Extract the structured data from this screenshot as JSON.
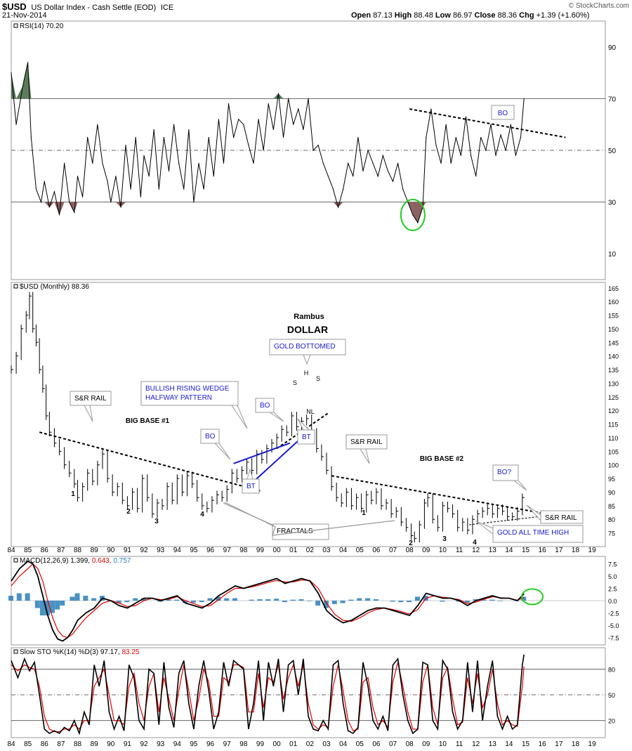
{
  "header": {
    "symbol": "$USD",
    "description": "US Dollar Index - Cash Settle (EOD)",
    "exchange": "ICE",
    "date": "21-Nov-2014",
    "open_label": "Open",
    "open": "87.13",
    "high_label": "High",
    "high": "88.48",
    "low_label": "Low",
    "low": "86.97",
    "close_label": "Close",
    "close": "88.36",
    "chg_label": "Chg",
    "chg": "+1.39 (+1.60%)",
    "watermark": "© StockCharts.com"
  },
  "chart_data": [
    {
      "type": "line",
      "panel": "rsi",
      "legend": "RSI(14) 70.20",
      "ylim": [
        0,
        100
      ],
      "yticks": [
        10,
        30,
        50,
        70,
        90
      ],
      "reference_lines": [
        30,
        50,
        70
      ],
      "x": [
        1984.0,
        1984.3,
        1984.7,
        1985.0,
        1985.2,
        1985.5,
        1985.8,
        1986.0,
        1986.3,
        1986.6,
        1986.9,
        1987.2,
        1987.5,
        1987.8,
        1988.0,
        1988.3,
        1988.6,
        1988.9,
        1989.2,
        1989.5,
        1989.8,
        1990.0,
        1990.3,
        1990.6,
        1990.9,
        1991.2,
        1991.5,
        1991.8,
        1992.0,
        1992.3,
        1992.6,
        1992.9,
        1993.2,
        1993.5,
        1993.8,
        1994.1,
        1994.4,
        1994.7,
        1995.0,
        1995.3,
        1995.6,
        1995.9,
        1996.2,
        1996.5,
        1996.8,
        1997.1,
        1997.4,
        1997.7,
        1998.0,
        1998.3,
        1998.6,
        1998.9,
        1999.2,
        1999.5,
        1999.8,
        2000.1,
        2000.4,
        2000.7,
        2001.0,
        2001.3,
        2001.6,
        2001.9,
        2002.2,
        2002.5,
        2002.8,
        2003.1,
        2003.4,
        2003.7,
        2004.0,
        2004.3,
        2004.6,
        2004.9,
        2005.2,
        2005.5,
        2005.8,
        2006.1,
        2006.4,
        2006.7,
        2007.0,
        2007.3,
        2007.6,
        2007.9,
        2008.2,
        2008.5,
        2008.8,
        2009.0,
        2009.3,
        2009.6,
        2009.9,
        2010.2,
        2010.5,
        2010.8,
        2011.1,
        2011.4,
        2011.7,
        2012.0,
        2012.3,
        2012.6,
        2012.9,
        2013.2,
        2013.5,
        2013.8,
        2014.1,
        2014.4,
        2014.7,
        2014.9
      ],
      "values": [
        80,
        60,
        75,
        84,
        55,
        35,
        30,
        38,
        28,
        34,
        25,
        45,
        30,
        26,
        40,
        32,
        55,
        45,
        60,
        45,
        38,
        30,
        40,
        28,
        52,
        35,
        55,
        32,
        48,
        40,
        58,
        35,
        55,
        42,
        60,
        45,
        35,
        58,
        30,
        45,
        35,
        55,
        40,
        62,
        45,
        68,
        55,
        62,
        60,
        52,
        45,
        62,
        50,
        68,
        58,
        72,
        55,
        70,
        60,
        66,
        58,
        70,
        50,
        52,
        45,
        40,
        35,
        28,
        35,
        45,
        40,
        55,
        42,
        50,
        45,
        40,
        48,
        42,
        38,
        45,
        35,
        30,
        25,
        22,
        28,
        55,
        66,
        52,
        45,
        60,
        45,
        55,
        48,
        63,
        48,
        40,
        55,
        50,
        60,
        48,
        56,
        50,
        60,
        48,
        55,
        70
      ]
    },
    {
      "type": "bar",
      "panel": "price",
      "legend": "$USD (Monthly) 88.36",
      "ylim": [
        70,
        167
      ],
      "yticks": [
        75,
        80,
        85,
        90,
        95,
        100,
        105,
        110,
        115,
        120,
        125,
        130,
        135,
        140,
        145,
        150,
        155,
        160,
        165
      ],
      "xticks": [
        "84",
        "85",
        "86",
        "87",
        "88",
        "89",
        "90",
        "91",
        "92",
        "93",
        "94",
        "95",
        "96",
        "97",
        "98",
        "99",
        "00",
        "01",
        "02",
        "03",
        "04",
        "05",
        "06",
        "07",
        "08",
        "09",
        "10",
        "11",
        "12",
        "13",
        "14",
        "15",
        "16",
        "17",
        "18",
        "19"
      ],
      "x": [
        1984.0,
        1984.3,
        1984.6,
        1984.9,
        1985.1,
        1985.3,
        1985.5,
        1985.7,
        1985.9,
        1986.1,
        1986.3,
        1986.6,
        1986.9,
        1987.2,
        1987.5,
        1987.8,
        1988.0,
        1988.3,
        1988.6,
        1988.9,
        1989.2,
        1989.5,
        1989.8,
        1990.1,
        1990.4,
        1990.7,
        1991.0,
        1991.3,
        1991.6,
        1991.9,
        1992.2,
        1992.5,
        1992.8,
        1993.1,
        1993.4,
        1993.7,
        1994.0,
        1994.3,
        1994.6,
        1994.9,
        1995.2,
        1995.5,
        1995.8,
        1996.1,
        1996.4,
        1996.7,
        1997.0,
        1997.3,
        1997.6,
        1997.9,
        1998.2,
        1998.5,
        1998.8,
        1999.1,
        1999.4,
        1999.7,
        2000.0,
        2000.3,
        2000.6,
        2000.9,
        2001.2,
        2001.5,
        2001.8,
        2002.1,
        2002.4,
        2002.7,
        2003.0,
        2003.3,
        2003.6,
        2003.9,
        2004.2,
        2004.5,
        2004.8,
        2005.1,
        2005.4,
        2005.7,
        2006.0,
        2006.3,
        2006.6,
        2006.9,
        2007.2,
        2007.5,
        2007.8,
        2008.1,
        2008.3,
        2008.6,
        2008.9,
        2009.1,
        2009.4,
        2009.7,
        2010.0,
        2010.3,
        2010.6,
        2010.9,
        2011.2,
        2011.5,
        2011.8,
        2012.1,
        2012.4,
        2012.7,
        2013.0,
        2013.3,
        2013.6,
        2013.9,
        2014.2,
        2014.5,
        2014.8
      ],
      "values": [
        135,
        140,
        150,
        155,
        162,
        150,
        145,
        135,
        128,
        118,
        112,
        108,
        105,
        100,
        97,
        93,
        88,
        92,
        97,
        94,
        100,
        104,
        95,
        90,
        92,
        87,
        85,
        90,
        84,
        95,
        88,
        82,
        86,
        85,
        92,
        87,
        95,
        90,
        96,
        93,
        88,
        85,
        84,
        87,
        89,
        88,
        91,
        97,
        95,
        98,
        101,
        98,
        104,
        102,
        106,
        108,
        110,
        113,
        112,
        118,
        114,
        116,
        117,
        112,
        106,
        103,
        98,
        92,
        88,
        86,
        90,
        85,
        88,
        84,
        89,
        87,
        90,
        85,
        86,
        82,
        83,
        79,
        77,
        74,
        73,
        78,
        86,
        88,
        80,
        77,
        85,
        84,
        82,
        77,
        79,
        76,
        80,
        82,
        83,
        84,
        82,
        84,
        83,
        81,
        81,
        83,
        88
      ]
    },
    {
      "type": "line",
      "panel": "macd",
      "legend_label": "MACD(12,26,9)",
      "legend_values": [
        "1.399",
        "0.643",
        "0.757"
      ],
      "series_colors": [
        "#000000",
        "#e00000",
        "#2a7fb8"
      ],
      "ylim": [
        -9,
        9
      ],
      "yticks": [
        -7.5,
        -5.0,
        -2.5,
        0.0,
        2.5,
        5.0,
        7.5
      ],
      "x": [
        1984.0,
        1984.5,
        1985.0,
        1985.3,
        1985.6,
        1985.9,
        1986.2,
        1986.5,
        1986.8,
        1987.1,
        1987.4,
        1987.7,
        1988.0,
        1988.5,
        1989.0,
        1989.5,
        1990.0,
        1990.5,
        1991.0,
        1991.5,
        1992.0,
        1992.5,
        1993.0,
        1993.5,
        1994.0,
        1994.5,
        1995.0,
        1995.5,
        1996.0,
        1996.5,
        1997.0,
        1997.5,
        1998.0,
        1998.5,
        1999.0,
        1999.5,
        2000.0,
        2000.5,
        2001.0,
        2001.5,
        2002.0,
        2002.5,
        2003.0,
        2003.5,
        2004.0,
        2004.5,
        2005.0,
        2005.5,
        2006.0,
        2006.5,
        2007.0,
        2007.5,
        2008.0,
        2008.5,
        2009.0,
        2009.5,
        2010.0,
        2010.5,
        2011.0,
        2011.5,
        2012.0,
        2012.5,
        2013.0,
        2013.5,
        2014.0,
        2014.5,
        2014.9
      ],
      "series": [
        {
          "values": [
            4,
            6.5,
            8,
            7.5,
            5,
            1,
            -3,
            -6,
            -7.8,
            -8.2,
            -7.5,
            -6,
            -4,
            -2.5,
            -1.5,
            0.5,
            0,
            -1,
            -1.5,
            -0.5,
            0.5,
            0.5,
            0,
            0.5,
            1,
            -0.5,
            -1,
            -1.5,
            -0.5,
            1,
            2,
            3,
            2.5,
            3,
            3.5,
            4,
            4.5,
            3.5,
            4,
            4.5,
            4,
            1.5,
            -2,
            -3.5,
            -4.5,
            -4,
            -3,
            -2,
            -1.5,
            -1.5,
            -2,
            -2.5,
            -3,
            -1,
            1.5,
            1,
            0.5,
            0.5,
            0,
            -1,
            0,
            0.5,
            1,
            0.5,
            0.5,
            0,
            1.4
          ]
        },
        {
          "values": [
            3,
            5,
            6.5,
            7.5,
            6.5,
            4,
            0,
            -3.5,
            -6,
            -7.2,
            -7.5,
            -6.8,
            -5.5,
            -3.5,
            -2,
            -0.5,
            0,
            -0.5,
            -1.2,
            -1,
            0,
            0.5,
            0.2,
            0.3,
            0.8,
            0,
            -0.6,
            -1.2,
            -1,
            0.2,
            1.5,
            2.5,
            2.5,
            2.8,
            3.2,
            3.7,
            4.1,
            3.8,
            3.8,
            4.2,
            4.1,
            2.5,
            -0.5,
            -2.8,
            -4,
            -4.2,
            -3.5,
            -2.5,
            -1.8,
            -1.5,
            -1.8,
            -2.2,
            -2.7,
            -1.8,
            0.5,
            1,
            0.7,
            0.5,
            0.2,
            -0.6,
            -0.3,
            0.3,
            0.8,
            0.6,
            0.5,
            0.1,
            0.6
          ]
        },
        {
          "values": [
            1,
            1.5,
            1.5,
            0,
            -1.5,
            -3,
            -3,
            -2.5,
            -1.8,
            -1,
            0,
            0.8,
            1.5,
            1,
            0.5,
            1,
            0,
            -0.5,
            -0.3,
            0.5,
            0.5,
            0,
            -0.2,
            0.2,
            0.2,
            -0.5,
            -0.4,
            -0.3,
            0.5,
            0.8,
            0.5,
            0.5,
            0,
            0.2,
            0.3,
            0.3,
            0.4,
            -0.3,
            0.2,
            0.3,
            -0.1,
            -1,
            -1.5,
            -0.7,
            -0.5,
            0.2,
            0.5,
            0.5,
            0.3,
            0,
            -0.2,
            -0.3,
            -0.3,
            0.8,
            1,
            0,
            -0.2,
            0,
            -0.2,
            -0.4,
            0.3,
            0.2,
            0.2,
            -0.1,
            0,
            -0.1,
            0.8
          ]
        }
      ]
    },
    {
      "type": "line",
      "panel": "stochastic",
      "legend_label": "Slow STO %K(14) %D(3)",
      "legend_values": [
        "97.17",
        "83.25"
      ],
      "series_colors": [
        "#000000",
        "#e00000"
      ],
      "ylim": [
        0,
        105
      ],
      "yticks": [
        20,
        50,
        80
      ],
      "reference_lines": [
        20,
        50,
        80
      ],
      "x": [
        1984.0,
        1984.4,
        1984.8,
        1985.1,
        1985.4,
        1985.7,
        1986.0,
        1986.3,
        1986.6,
        1986.9,
        1987.2,
        1987.5,
        1987.8,
        1988.1,
        1988.4,
        1988.7,
        1989.0,
        1989.3,
        1989.6,
        1989.9,
        1990.2,
        1990.5,
        1990.8,
        1991.1,
        1991.4,
        1991.7,
        1992.0,
        1992.3,
        1992.6,
        1992.9,
        1993.2,
        1993.5,
        1993.8,
        1994.1,
        1994.4,
        1994.7,
        1995.0,
        1995.3,
        1995.6,
        1995.9,
        1996.2,
        1996.5,
        1996.8,
        1997.1,
        1997.4,
        1997.7,
        1998.0,
        1998.3,
        1998.6,
        1998.9,
        1999.2,
        1999.5,
        1999.8,
        2000.1,
        2000.4,
        2000.7,
        2001.0,
        2001.3,
        2001.6,
        2001.9,
        2002.2,
        2002.5,
        2002.8,
        2003.1,
        2003.4,
        2003.7,
        2004.0,
        2004.3,
        2004.6,
        2004.9,
        2005.2,
        2005.5,
        2005.8,
        2006.1,
        2006.4,
        2006.7,
        2007.0,
        2007.3,
        2007.6,
        2007.9,
        2008.2,
        2008.5,
        2008.8,
        2009.1,
        2009.4,
        2009.7,
        2010.0,
        2010.3,
        2010.6,
        2010.9,
        2011.2,
        2011.5,
        2011.8,
        2012.1,
        2012.4,
        2012.7,
        2013.0,
        2013.3,
        2013.6,
        2013.9,
        2014.2,
        2014.5,
        2014.8,
        2014.9
      ],
      "series": [
        {
          "values": [
            90,
            70,
            92,
            78,
            88,
            50,
            10,
            5,
            8,
            5,
            12,
            8,
            20,
            5,
            30,
            15,
            85,
            60,
            90,
            30,
            10,
            25,
            8,
            85,
            70,
            20,
            10,
            80,
            75,
            15,
            88,
            35,
            12,
            75,
            90,
            40,
            10,
            60,
            90,
            55,
            10,
            30,
            88,
            60,
            90,
            85,
            80,
            10,
            40,
            90,
            20,
            88,
            60,
            92,
            30,
            85,
            90,
            50,
            92,
            25,
            10,
            8,
            20,
            10,
            85,
            90,
            40,
            8,
            5,
            12,
            88,
            60,
            20,
            10,
            25,
            8,
            85,
            92,
            50,
            20,
            5,
            10,
            88,
            85,
            20,
            10,
            90,
            80,
            30,
            10,
            20,
            88,
            30,
            90,
            20,
            60,
            90,
            25,
            10,
            25,
            10,
            15,
            85,
            97
          ]
        },
        {
          "values": [
            85,
            78,
            85,
            82,
            80,
            60,
            25,
            10,
            7,
            7,
            10,
            10,
            15,
            10,
            20,
            20,
            60,
            70,
            80,
            50,
            20,
            20,
            15,
            60,
            75,
            40,
            20,
            60,
            75,
            30,
            70,
            45,
            20,
            55,
            85,
            55,
            20,
            45,
            80,
            65,
            25,
            25,
            70,
            65,
            85,
            85,
            82,
            30,
            30,
            75,
            35,
            70,
            65,
            85,
            45,
            70,
            85,
            60,
            85,
            40,
            15,
            10,
            15,
            12,
            60,
            85,
            55,
            20,
            8,
            10,
            65,
            70,
            35,
            15,
            20,
            12,
            65,
            88,
            60,
            30,
            10,
            10,
            65,
            85,
            35,
            15,
            70,
            82,
            45,
            15,
            18,
            70,
            40,
            75,
            35,
            50,
            80,
            40,
            15,
            20,
            15,
            13,
            60,
            83
          ]
        }
      ]
    }
  ],
  "annotations": {
    "rambus": "Rambus",
    "dollar": "DOLLAR",
    "gold_bottomed": "GOLD BOTTOMED",
    "wedge_line1": "BULLISH RISING WEDGE",
    "wedge_line2": "HALFWAY PATTERN",
    "sr_rail_1": "S&R RAIL",
    "sr_rail_2": "S&R RAIL",
    "sr_rail_3": "S&R RAIL",
    "big_base_1": "BIG BASE #1",
    "big_base_2": "BIG BASE #2",
    "fractals": "FRACTALS",
    "gold_ath": "GOLD ALL TIME HIGH",
    "bo_1": "BO",
    "bo_2": "BO",
    "bo_rsi": "BO",
    "bo_q": "BO?",
    "bt_1": "BT",
    "bt_2": "BT",
    "h": "H",
    "s1": "S",
    "s2": "S",
    "nl": "NL",
    "nums_base1": [
      "1",
      "2",
      "3",
      "4"
    ],
    "nums_base2": [
      "1",
      "2",
      "3",
      "4"
    ]
  },
  "colors": {
    "rsi_overbought_fill": "#5a7a5a",
    "rsi_oversold_fill": "#8a6060",
    "annotation_blue": "#1a1acc",
    "wedge_line": "#1a1acc",
    "highlight_circle": "#22cc22",
    "macd_hist": "#2a7fb8",
    "signal": "#e00000"
  }
}
